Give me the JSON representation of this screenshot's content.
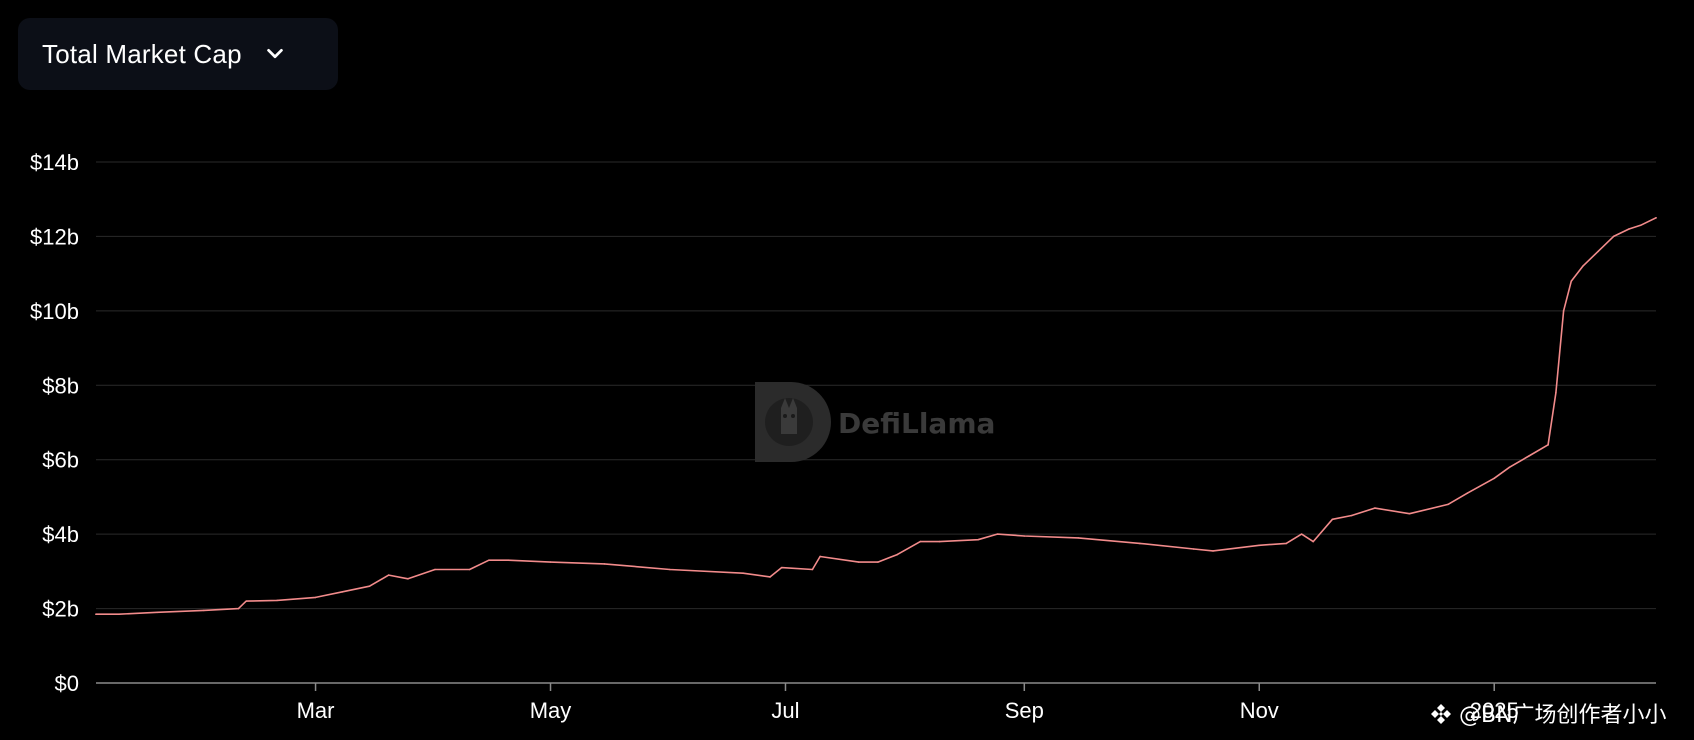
{
  "header": {
    "metric_label": "Total Market Cap",
    "dropdown_icon": "chevron-down-icon"
  },
  "watermark": {
    "text": "DefiLlama",
    "icon": "llama-logo-icon"
  },
  "credit": {
    "text": "@BN广场创作者小小",
    "icon": "binance-diamond-icon"
  },
  "colors": {
    "background": "#000000",
    "line": "#f28b8b",
    "grid": "#2a2a2a",
    "text": "#ffffff",
    "selector_bg": "#0c0f17"
  },
  "chart_data": {
    "type": "line",
    "title": "",
    "xlabel": "",
    "ylabel": "",
    "ylim": [
      0,
      14
    ],
    "yticks": [
      0,
      2,
      4,
      6,
      8,
      10,
      12,
      14
    ],
    "ytick_labels": [
      "$0",
      "$2b",
      "$4b",
      "$6b",
      "$8b",
      "$10b",
      "$12b",
      "$14b"
    ],
    "xlim": [
      "2024-01-04",
      "2025-02-12"
    ],
    "xticks": [
      "2024-03-01",
      "2024-05-01",
      "2024-07-01",
      "2024-09-01",
      "2024-11-01",
      "2025-01-01"
    ],
    "xtick_labels": [
      "Mar",
      "May",
      "Jul",
      "Sep",
      "Nov",
      "2025"
    ],
    "grid": true,
    "legend": "none",
    "series": [
      {
        "name": "",
        "x": [
          "2024-01-04",
          "2024-01-10",
          "2024-01-20",
          "2024-02-01",
          "2024-02-10",
          "2024-02-12",
          "2024-02-20",
          "2024-03-01",
          "2024-03-08",
          "2024-03-15",
          "2024-03-20",
          "2024-03-25",
          "2024-04-01",
          "2024-04-10",
          "2024-04-15",
          "2024-04-20",
          "2024-05-01",
          "2024-05-15",
          "2024-06-01",
          "2024-06-20",
          "2024-06-27",
          "2024-06-30",
          "2024-07-08",
          "2024-07-10",
          "2024-07-20",
          "2024-07-25",
          "2024-07-30",
          "2024-08-05",
          "2024-08-10",
          "2024-08-20",
          "2024-08-25",
          "2024-09-01",
          "2024-09-15",
          "2024-10-01",
          "2024-10-15",
          "2024-10-20",
          "2024-11-01",
          "2024-11-08",
          "2024-11-12",
          "2024-11-15",
          "2024-11-20",
          "2024-11-25",
          "2024-12-01",
          "2024-12-10",
          "2024-12-20",
          "2024-12-25",
          "2025-01-01",
          "2025-01-05",
          "2025-01-10",
          "2025-01-15",
          "2025-01-17",
          "2025-01-19",
          "2025-01-21",
          "2025-01-24",
          "2025-01-28",
          "2025-02-01",
          "2025-02-05",
          "2025-02-08",
          "2025-02-12"
        ],
        "y": [
          1.85,
          1.85,
          1.9,
          1.95,
          2.0,
          2.2,
          2.22,
          2.3,
          2.45,
          2.6,
          2.9,
          2.8,
          3.05,
          3.05,
          3.3,
          3.3,
          3.25,
          3.2,
          3.05,
          2.95,
          2.85,
          3.1,
          3.05,
          3.4,
          3.25,
          3.25,
          3.45,
          3.8,
          3.8,
          3.85,
          4.0,
          3.95,
          3.9,
          3.75,
          3.6,
          3.55,
          3.7,
          3.75,
          4.0,
          3.8,
          4.4,
          4.5,
          4.7,
          4.55,
          4.8,
          5.1,
          5.5,
          5.8,
          6.1,
          6.4,
          7.8,
          10.0,
          10.8,
          11.2,
          11.6,
          12.0,
          12.2,
          12.3,
          12.5
        ]
      }
    ]
  }
}
